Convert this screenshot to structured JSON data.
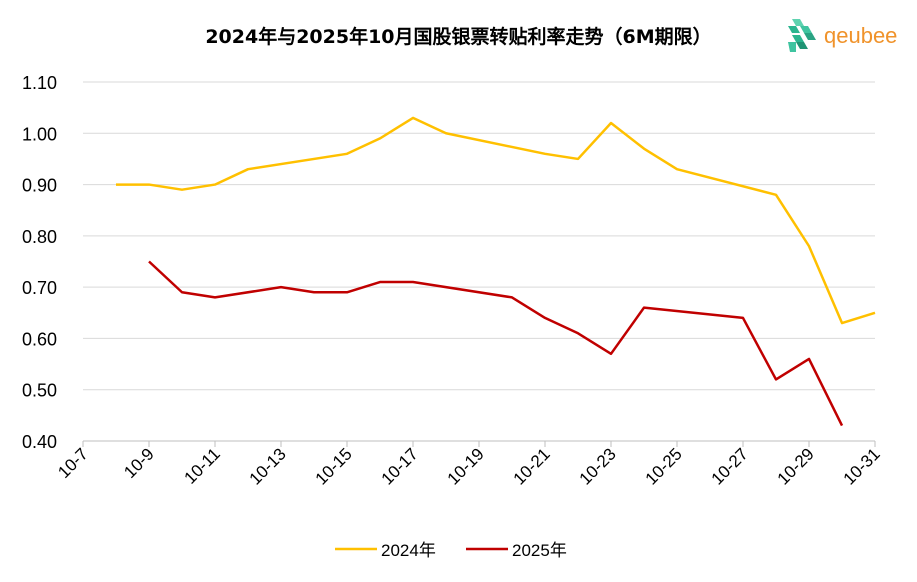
{
  "chart_data": {
    "type": "line",
    "title": "2024年与2025年10月国股银票转贴利率走势（6M期限）",
    "xlabel": "",
    "ylabel": "",
    "xlim": [
      7,
      31
    ],
    "x_ticks": [
      7,
      9,
      11,
      13,
      15,
      17,
      19,
      21,
      23,
      25,
      27,
      29,
      31
    ],
    "x_tick_labels": [
      "10-7",
      "10-9",
      "10-11",
      "10-13",
      "10-15",
      "10-17",
      "10-19",
      "10-21",
      "10-23",
      "10-25",
      "10-27",
      "10-29",
      "10-31"
    ],
    "ylim": [
      0.4,
      1.1
    ],
    "y_ticks": [
      0.4,
      0.5,
      0.6,
      0.7,
      0.8,
      0.9,
      1.0,
      1.1
    ],
    "y_tick_labels": [
      "0.40",
      "0.50",
      "0.60",
      "0.70",
      "0.80",
      "0.90",
      "1.00",
      "1.10"
    ],
    "grid": true,
    "legend_position": "bottom",
    "series": [
      {
        "name": "2024年",
        "color": "#ffc000",
        "x": [
          8,
          9,
          10,
          11,
          12,
          15,
          16,
          17,
          18,
          21,
          22,
          23,
          24,
          25,
          28,
          29,
          30,
          31
        ],
        "values": [
          0.9,
          0.9,
          0.89,
          0.9,
          0.93,
          0.96,
          0.99,
          1.03,
          1.0,
          0.96,
          0.95,
          1.02,
          0.97,
          0.93,
          0.88,
          0.78,
          0.63,
          0.65
        ]
      },
      {
        "name": "2025年",
        "color": "#c00000",
        "x": [
          9,
          10,
          11,
          13,
          14,
          15,
          16,
          17,
          20,
          21,
          22,
          23,
          24,
          27,
          28,
          29,
          30
        ],
        "values": [
          0.75,
          0.69,
          0.68,
          0.7,
          0.69,
          0.69,
          0.71,
          0.71,
          0.68,
          0.64,
          0.61,
          0.57,
          0.66,
          0.64,
          0.52,
          0.56,
          0.43
        ]
      }
    ]
  },
  "logo": {
    "text": "qeubee",
    "color": "#f0932b",
    "mark_color": "#2bb58f"
  }
}
